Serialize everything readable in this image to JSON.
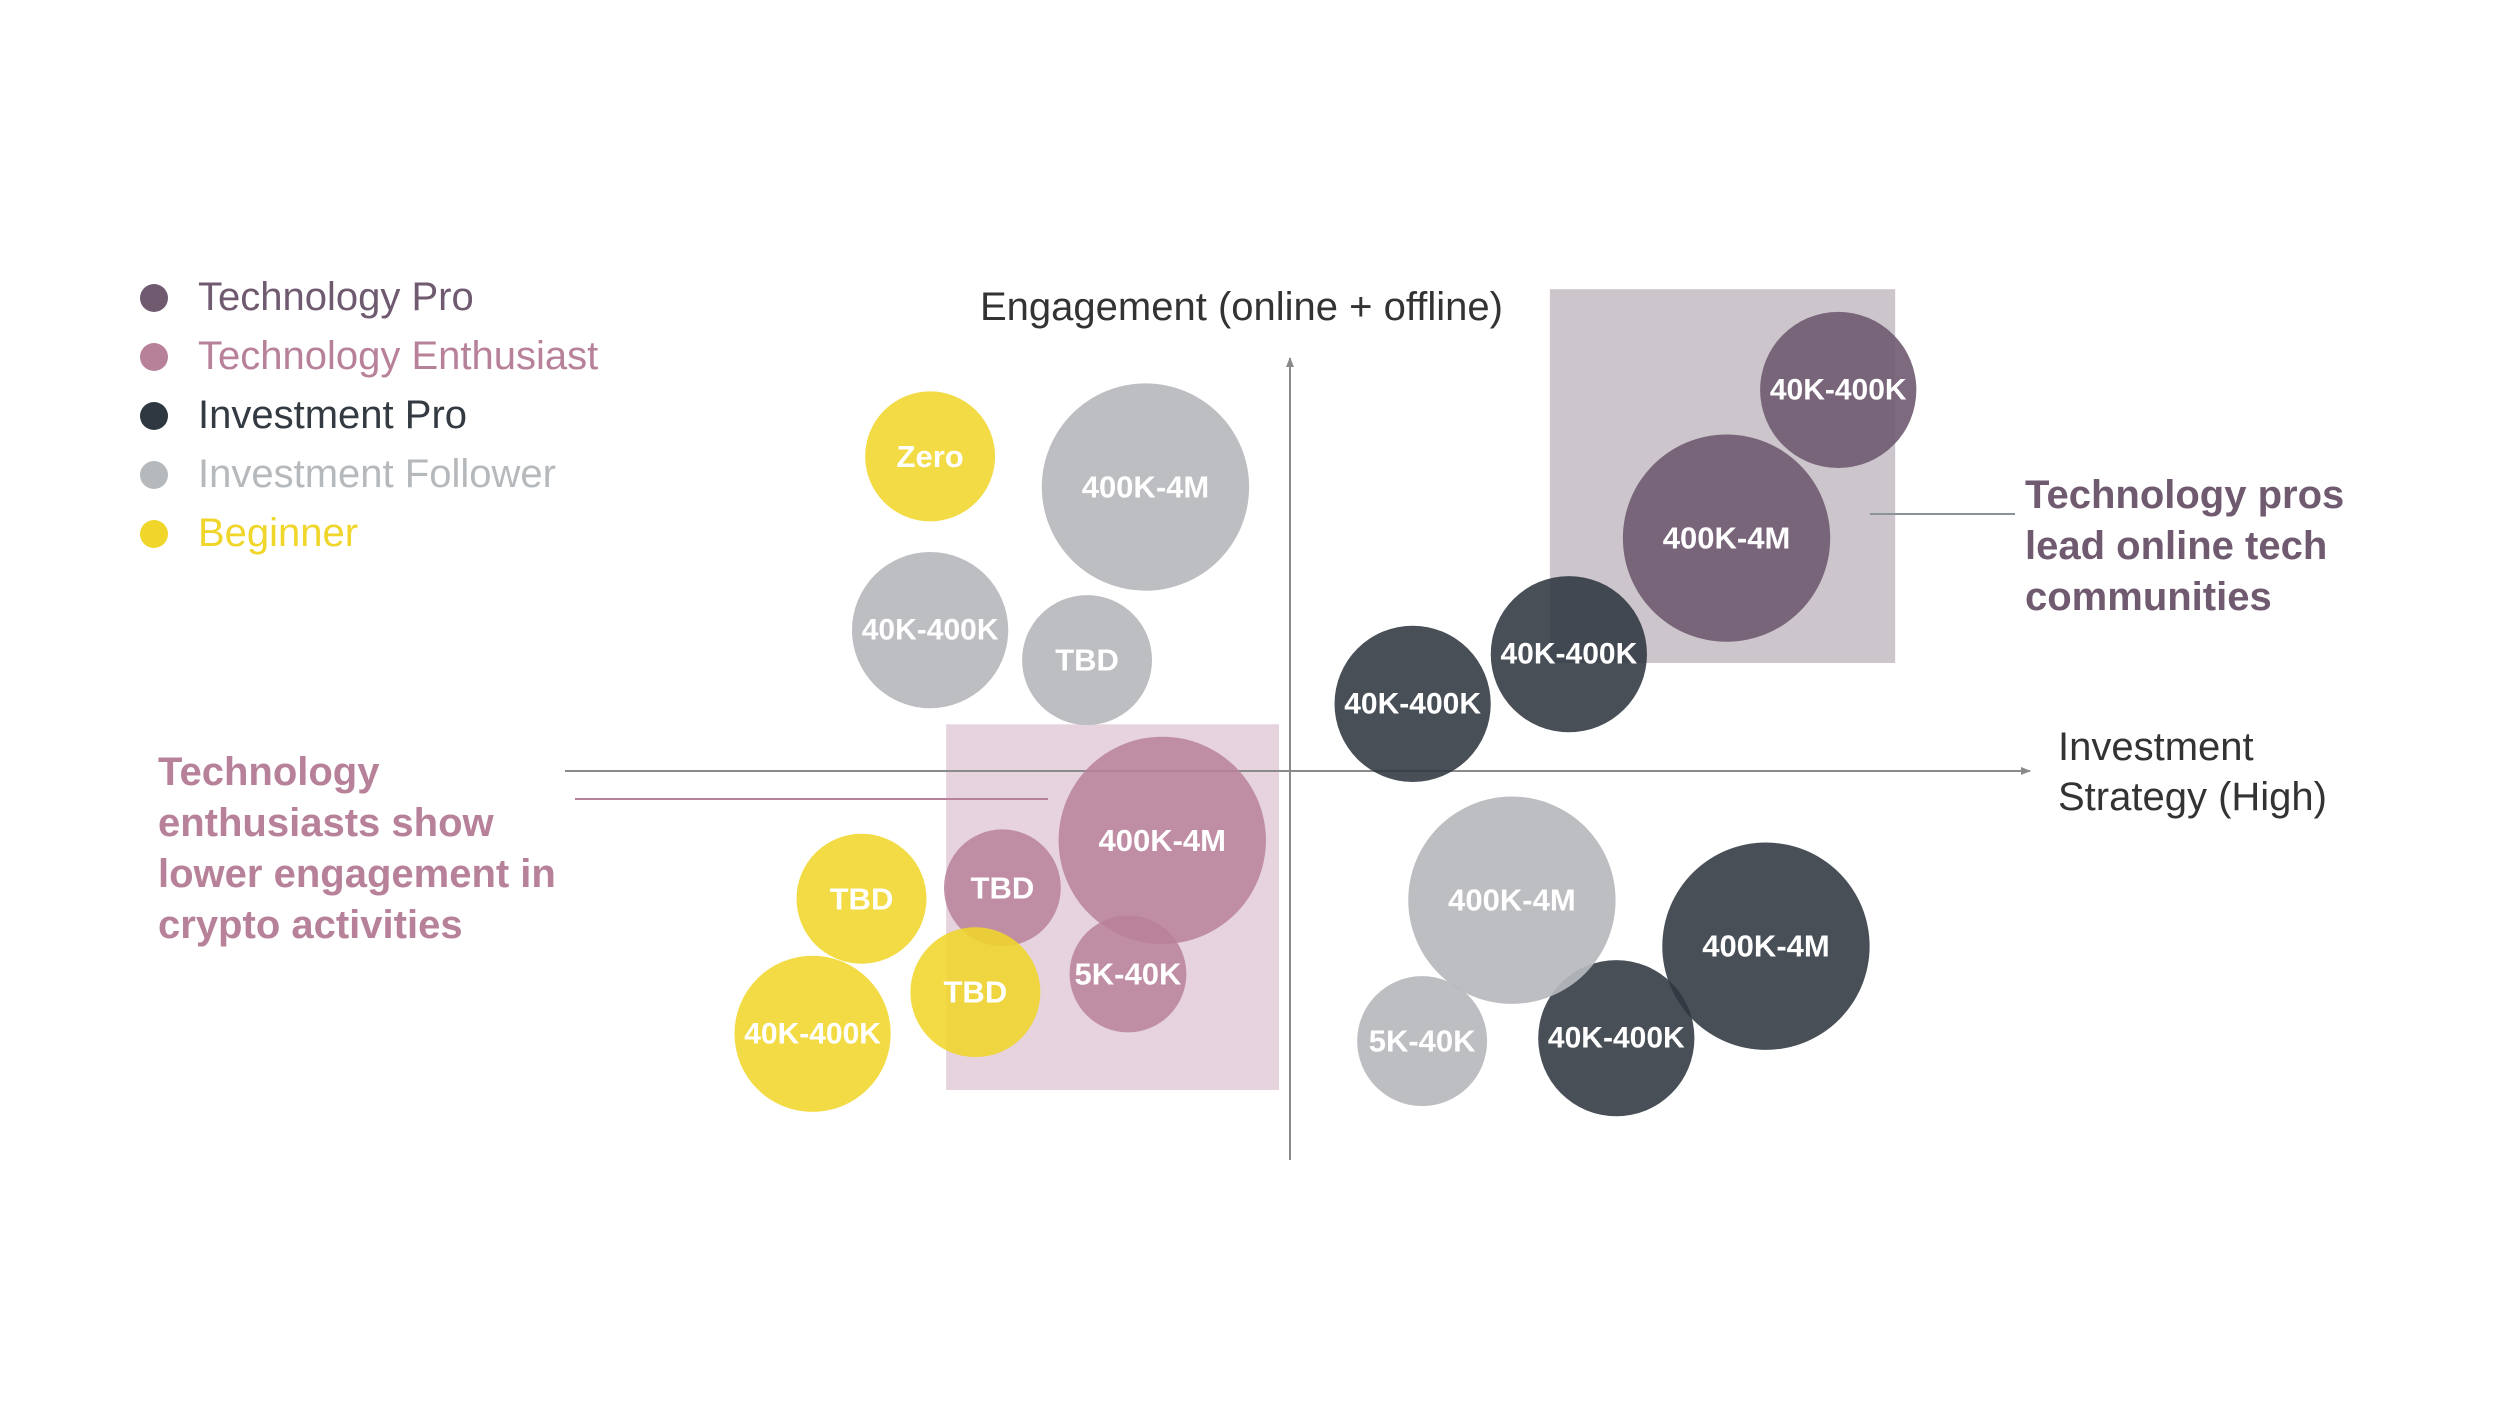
{
  "chart_data": {
    "type": "scatter",
    "variant": "bubble quadrant",
    "xlabel": "Investment Strategy (High)",
    "ylabel": "Engagement (online + offline)",
    "legend_position": "top-left",
    "grid": false,
    "categories": [
      "Technology Pro",
      "Technology Enthusiast",
      "Investment Pro",
      "Investment Follower",
      "Beginner"
    ],
    "colors": {
      "Technology Pro": "#6f5a70",
      "Technology Enthusiast": "#b8819a",
      "Investment Pro": "#2f3740",
      "Investment Follower": "#b6b9bc",
      "Beginner": "#f0d62a"
    },
    "bubble_opacity": {
      "Technology Pro": 0.9,
      "Technology Enthusiast": 0.85,
      "Investment Pro": 0.88,
      "Investment Follower": 0.92,
      "Beginner": 0.88
    },
    "highlight_boxes": [
      {
        "name": "technology-pro-box",
        "x": [
          3.56,
          8.29
        ],
        "y": [
          1.48,
          6.6
        ],
        "color": "#b1a8b1",
        "opacity": 0.65
      },
      {
        "name": "technology-enthusiast-box",
        "x": [
          -4.71,
          -0.15
        ],
        "y": [
          -4.37,
          0.64
        ],
        "color": "#d6b6c6",
        "opacity": 0.6
      }
    ],
    "series": [
      {
        "name": "Technology Pro",
        "points": [
          {
            "x": 7.51,
            "y": 5.22,
            "size": 1.07,
            "label": "40K-400K"
          },
          {
            "x": 5.98,
            "y": 3.19,
            "size": 1.42,
            "label": "400K-4M"
          }
        ]
      },
      {
        "name": "Technology Enthusiast",
        "points": [
          {
            "x": -1.75,
            "y": -0.95,
            "size": 1.42,
            "label": "400K-4M"
          },
          {
            "x": -3.94,
            "y": -1.6,
            "size": 0.8,
            "label": "TBD"
          },
          {
            "x": -2.22,
            "y": -2.78,
            "size": 0.8,
            "label": "5K-40K"
          }
        ]
      },
      {
        "name": "Investment Pro",
        "points": [
          {
            "x": 3.82,
            "y": 1.6,
            "size": 1.07,
            "label": "40K-400K"
          },
          {
            "x": 1.68,
            "y": 0.92,
            "size": 1.07,
            "label": "40K-400K"
          },
          {
            "x": 6.52,
            "y": -2.4,
            "size": 1.42,
            "label": "400K-4M"
          },
          {
            "x": 4.47,
            "y": -3.66,
            "size": 1.07,
            "label": "40K-400K"
          }
        ]
      },
      {
        "name": "Investment Follower",
        "points": [
          {
            "x": -1.98,
            "y": 3.89,
            "size": 1.42,
            "label": "400K-4M"
          },
          {
            "x": -4.93,
            "y": 1.93,
            "size": 1.07,
            "label": "40K-400K"
          },
          {
            "x": -2.78,
            "y": 1.52,
            "size": 0.89,
            "label": "TBD"
          },
          {
            "x": 3.04,
            "y": -1.77,
            "size": 1.42,
            "label": "400K-4M"
          },
          {
            "x": 1.81,
            "y": -3.7,
            "size": 0.89,
            "label": "5K-40K"
          }
        ]
      },
      {
        "name": "Beginner",
        "points": [
          {
            "x": -4.93,
            "y": 4.31,
            "size": 0.89,
            "label": "Zero"
          },
          {
            "x": -5.87,
            "y": -1.75,
            "size": 0.89,
            "label": "TBD"
          },
          {
            "x": -4.31,
            "y": -3.03,
            "size": 0.89,
            "label": "TBD"
          },
          {
            "x": -6.54,
            "y": -3.6,
            "size": 1.07,
            "label": "40K-400K"
          }
        ]
      }
    ],
    "annotations": [
      {
        "text": "Technology pros lead online tech communities",
        "color": "#6f5a70",
        "position": "right of top-right quadrant"
      },
      {
        "text": "Technology enthusiasts show lower engagement in crypto activities",
        "color": "#b8819a",
        "position": "left of center"
      }
    ]
  }
}
